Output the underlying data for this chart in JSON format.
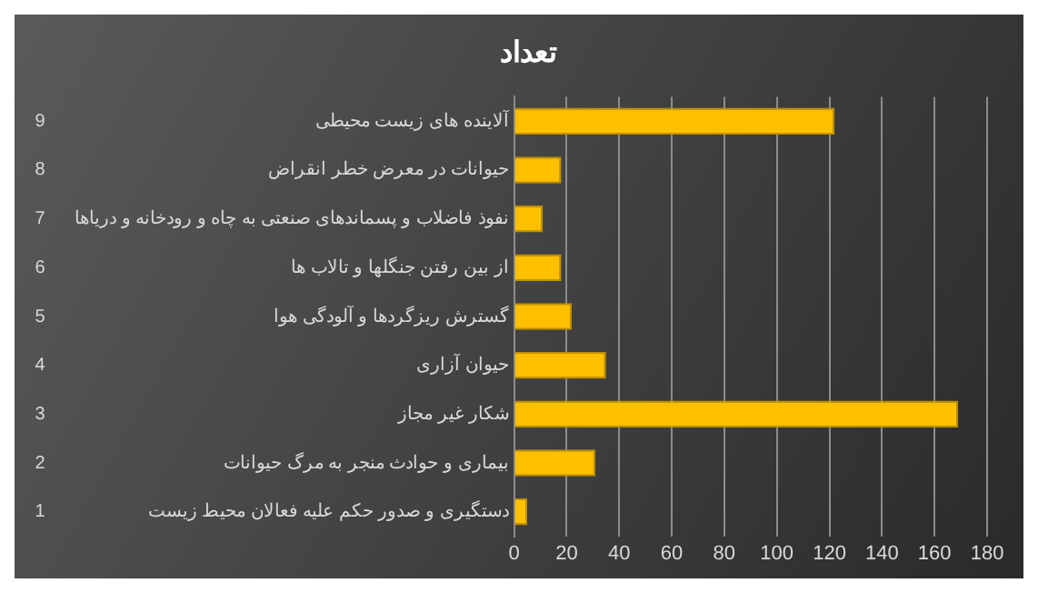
{
  "chart_data": {
    "type": "bar",
    "orientation": "horizontal",
    "title": "تعداد",
    "categories": [
      "آلاینده های زیست محیطی",
      "حیوانات در معرض خطر انقراض",
      "نفوذ فاضلاب و پسماندهای صنعتی به چاه و رودخانه و دریاها",
      "از بین رفتن جنگلها و تالاب ها",
      "گسترش ریزگردها و آلودگی هوا",
      "حیوان آزاری",
      "شکار غیر مجاز",
      "بیماری و حوادث منجر به مرگ حیوانات",
      "دستگیری و صدور حکم علیه فعالان محیط زیست"
    ],
    "values": [
      122,
      18,
      11,
      18,
      22,
      35,
      169,
      31,
      5
    ],
    "color": "#ffc000",
    "xlim": [
      0,
      180
    ],
    "xticks": [
      0,
      20,
      40,
      60,
      80,
      100,
      120,
      140,
      160,
      180
    ],
    "grid": "x",
    "legend": false,
    "annotations": [
      "9",
      "8",
      "7",
      "6",
      "5",
      "4",
      "3",
      "2",
      "1"
    ]
  }
}
